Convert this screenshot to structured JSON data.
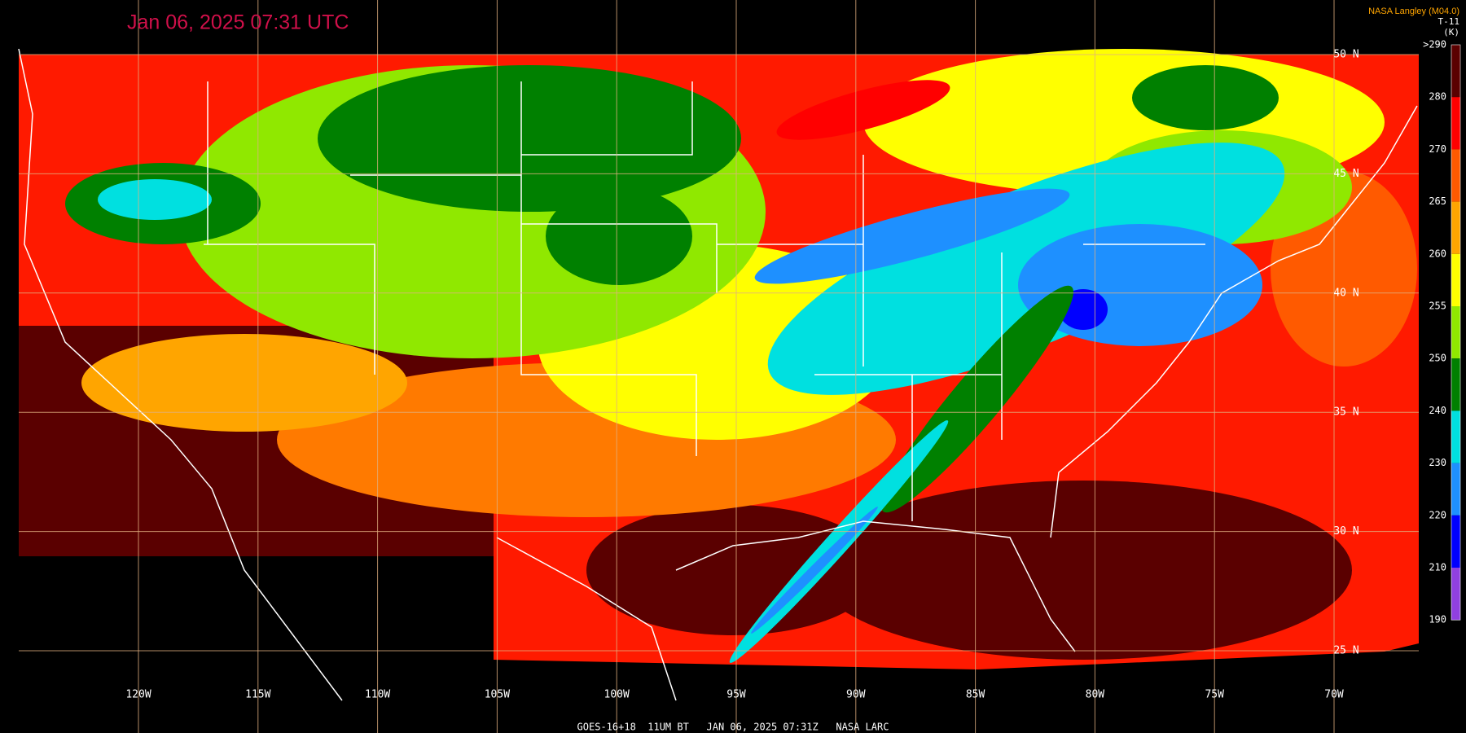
{
  "header": {
    "title": "Jan 06, 2025 07:31 UTC",
    "credit": "NASA Langley (M04.0)",
    "product": "T-11",
    "unit": "(K)"
  },
  "map": {
    "longitude_labels": [
      "120W",
      "115W",
      "110W",
      "105W",
      "100W",
      "95W",
      "90W",
      "85W",
      "80W",
      "75W",
      "70W"
    ],
    "latitude_labels": [
      "50 N",
      "45 N",
      "40 N",
      "35 N",
      "30 N",
      "25 N"
    ]
  },
  "colorbar": {
    "labels": [
      ">290",
      "280",
      "270",
      "265",
      "260",
      "255",
      "250",
      "240",
      "230",
      "220",
      "210",
      "190"
    ],
    "colors": [
      "#5a0000",
      "#ff0000",
      "#ff5a00",
      "#ffa500",
      "#ffff00",
      "#90e800",
      "#008000",
      "#00e0e0",
      "#1e90ff",
      "#0000ff",
      "#9040e0"
    ]
  },
  "footer": "GOES-16+18  11UM BT   JAN 06, 2025 07:31Z   NASA LARC"
}
